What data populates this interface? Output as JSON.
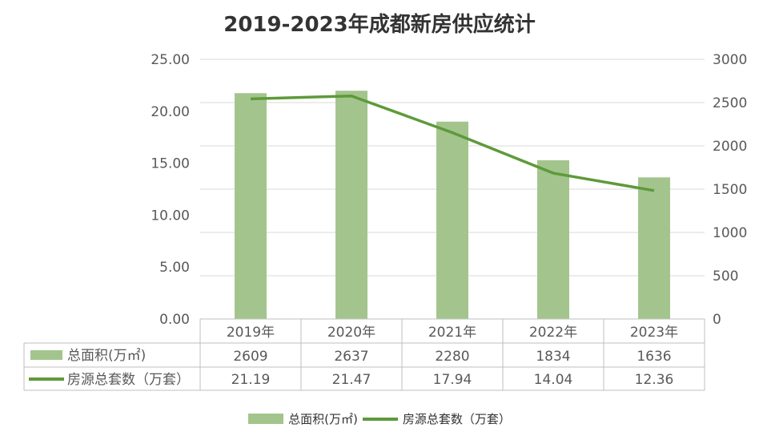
{
  "chart_data": {
    "type": "bar+line",
    "title": "2019-2023年成都新房供应统计",
    "categories": [
      "2019年",
      "2020年",
      "2021年",
      "2022年",
      "2023年"
    ],
    "series": [
      {
        "name": "总面积(万㎡)",
        "type": "bar",
        "axis": "right",
        "values": [
          2609,
          2637,
          2280,
          1834,
          1636
        ],
        "color": "#a3c58d"
      },
      {
        "name": "房源总套数（万套）",
        "type": "line",
        "axis": "left",
        "values": [
          21.19,
          21.47,
          17.94,
          14.04,
          12.36
        ],
        "color": "#5e9a3a"
      }
    ],
    "left_axis": {
      "ylim": [
        0,
        25
      ],
      "ticks": [
        "0.00",
        "5.00",
        "10.00",
        "15.00",
        "20.00",
        "25.00"
      ]
    },
    "right_axis": {
      "ylim": [
        0,
        3000
      ],
      "ticks": [
        "0",
        "500",
        "1000",
        "1500",
        "2000",
        "2500",
        "3000"
      ]
    },
    "table_values": {
      "bar": [
        "2609",
        "2637",
        "2280",
        "1834",
        "1636"
      ],
      "line": [
        "21.19",
        "21.47",
        "17.94",
        "14.04",
        "12.36"
      ]
    },
    "legend": {
      "position": "bottom",
      "items": [
        "总面积(万㎡)",
        "房源总套数（万套）"
      ]
    },
    "grid": true
  }
}
